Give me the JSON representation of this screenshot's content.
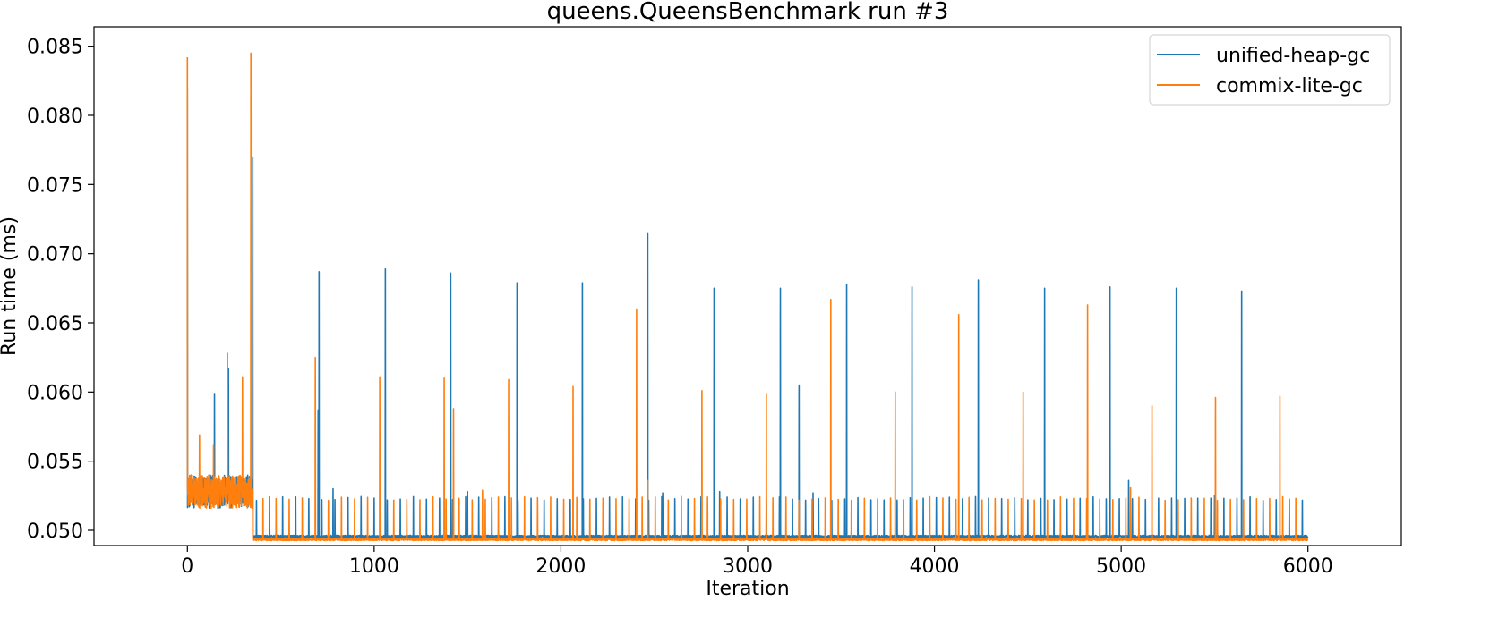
{
  "chart_data": {
    "type": "line",
    "title": "queens.QueensBenchmark run #3",
    "xlabel": "Iteration",
    "ylabel": "Run time (ms)",
    "xlim": [
      -500,
      6500
    ],
    "ylim": [
      0.0489,
      0.0864
    ],
    "xticks": [
      0,
      1000,
      2000,
      3000,
      4000,
      5000,
      6000
    ],
    "xtick_labels": [
      "0",
      "1000",
      "2000",
      "3000",
      "4000",
      "5000",
      "6000"
    ],
    "yticks": [
      0.05,
      0.055,
      0.06,
      0.065,
      0.07,
      0.075,
      0.08,
      0.085
    ],
    "ytick_labels": [
      "0.050",
      "0.055",
      "0.060",
      "0.065",
      "0.070",
      "0.075",
      "0.080",
      "0.085"
    ],
    "grid": false,
    "legend_position": "top-right",
    "n_iterations": 6000,
    "series": [
      {
        "name": "unified-heap-gc",
        "color": "#1f77b4",
        "warmup_end": 350,
        "warmup_level": 0.0528,
        "baseline": 0.04955,
        "peaks": [
          {
            "x": 0,
            "y": 0.082
          },
          {
            "x": 145,
            "y": 0.0599
          },
          {
            "x": 220,
            "y": 0.0617
          },
          {
            "x": 350,
            "y": 0.077
          },
          {
            "x": 700,
            "y": 0.0587
          },
          {
            "x": 705,
            "y": 0.0687
          },
          {
            "x": 1060,
            "y": 0.0689
          },
          {
            "x": 1410,
            "y": 0.0686
          },
          {
            "x": 1765,
            "y": 0.0679
          },
          {
            "x": 2115,
            "y": 0.0679
          },
          {
            "x": 2465,
            "y": 0.0715
          },
          {
            "x": 2820,
            "y": 0.0675
          },
          {
            "x": 3175,
            "y": 0.0675
          },
          {
            "x": 3275,
            "y": 0.0605
          },
          {
            "x": 3530,
            "y": 0.0678
          },
          {
            "x": 3880,
            "y": 0.0676
          },
          {
            "x": 4235,
            "y": 0.0681
          },
          {
            "x": 4590,
            "y": 0.0675
          },
          {
            "x": 4940,
            "y": 0.0676
          },
          {
            "x": 5295,
            "y": 0.0675
          },
          {
            "x": 5645,
            "y": 0.0673
          }
        ],
        "minor_peaks": [
          {
            "x": 780,
            "y": 0.053
          },
          {
            "x": 1500,
            "y": 0.0528
          },
          {
            "x": 2545,
            "y": 0.0527
          },
          {
            "x": 2850,
            "y": 0.0528
          },
          {
            "x": 3350,
            "y": 0.0527
          },
          {
            "x": 5040,
            "y": 0.0536
          },
          {
            "x": 5500,
            "y": 0.0525
          }
        ]
      },
      {
        "name": "commix-lite-gc",
        "color": "#ff7f0e",
        "warmup_end": 350,
        "warmup_level": 0.0528,
        "baseline": 0.04935,
        "peaks": [
          {
            "x": 0,
            "y": 0.0842
          },
          {
            "x": 65,
            "y": 0.0569
          },
          {
            "x": 140,
            "y": 0.0562
          },
          {
            "x": 215,
            "y": 0.0628
          },
          {
            "x": 295,
            "y": 0.0611
          },
          {
            "x": 340,
            "y": 0.0845
          },
          {
            "x": 685,
            "y": 0.0625
          },
          {
            "x": 1030,
            "y": 0.0611
          },
          {
            "x": 1375,
            "y": 0.061
          },
          {
            "x": 1425,
            "y": 0.0588
          },
          {
            "x": 1720,
            "y": 0.0609
          },
          {
            "x": 2065,
            "y": 0.0604
          },
          {
            "x": 2405,
            "y": 0.066
          },
          {
            "x": 2755,
            "y": 0.0601
          },
          {
            "x": 3100,
            "y": 0.0599
          },
          {
            "x": 3445,
            "y": 0.0667
          },
          {
            "x": 3790,
            "y": 0.06
          },
          {
            "x": 4130,
            "y": 0.0656
          },
          {
            "x": 4475,
            "y": 0.06
          },
          {
            "x": 4820,
            "y": 0.0663
          },
          {
            "x": 5165,
            "y": 0.059
          },
          {
            "x": 5505,
            "y": 0.0596
          },
          {
            "x": 5850,
            "y": 0.0597
          }
        ],
        "minor_peaks": [
          {
            "x": 2465,
            "y": 0.0536
          },
          {
            "x": 1580,
            "y": 0.0529
          },
          {
            "x": 5050,
            "y": 0.0531
          }
        ]
      }
    ]
  }
}
